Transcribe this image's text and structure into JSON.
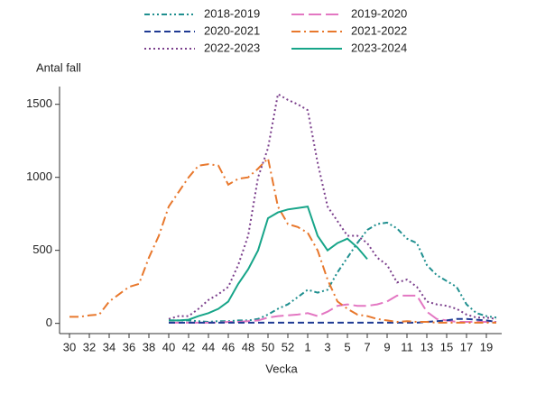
{
  "chart_data": {
    "type": "line",
    "ylabel": "Antal fall",
    "xlabel": "Vecka",
    "categories": [
      "30",
      null,
      "32",
      null,
      "34",
      null,
      "36",
      null,
      "38",
      null,
      "40",
      null,
      "42",
      null,
      "44",
      null,
      "46",
      null,
      "48",
      null,
      "50",
      null,
      "52",
      null,
      "1",
      null,
      "3",
      null,
      "5",
      null,
      "7",
      null,
      "9",
      null,
      "11",
      null,
      "13",
      null,
      "15",
      null,
      "17",
      null,
      "19",
      null
    ],
    "ylim": [
      -70,
      1650
    ],
    "yticks": [
      0,
      500,
      1000,
      1500
    ],
    "grid": false,
    "legend": "top",
    "series": [
      {
        "name": "2018-2019",
        "color": "#1f8f8f",
        "dash": "dashdotdot",
        "values": [
          null,
          null,
          null,
          null,
          null,
          null,
          null,
          null,
          null,
          null,
          20,
          20,
          20,
          15,
          10,
          15,
          15,
          20,
          20,
          30,
          60,
          100,
          130,
          180,
          230,
          210,
          230,
          350,
          450,
          550,
          640,
          680,
          690,
          650,
          580,
          550,
          400,
          330,
          290,
          250,
          130,
          70,
          50,
          40
        ]
      },
      {
        "name": "2019-2020",
        "color": "#e377c2",
        "dash": "longdash",
        "values": [
          null,
          null,
          null,
          null,
          null,
          null,
          null,
          null,
          null,
          null,
          5,
          5,
          5,
          5,
          5,
          5,
          10,
          10,
          15,
          20,
          40,
          50,
          55,
          60,
          70,
          50,
          80,
          120,
          130,
          120,
          120,
          130,
          150,
          190,
          190,
          190,
          80,
          30,
          20,
          10,
          10,
          10,
          10,
          10
        ]
      },
      {
        "name": "2020-2021",
        "color": "#1f3a93",
        "dash": "dash",
        "values": [
          null,
          null,
          null,
          null,
          null,
          null,
          null,
          null,
          null,
          null,
          5,
          5,
          5,
          5,
          5,
          5,
          5,
          5,
          5,
          5,
          5,
          5,
          5,
          5,
          5,
          5,
          5,
          5,
          5,
          5,
          5,
          5,
          5,
          5,
          5,
          5,
          10,
          15,
          20,
          30,
          30,
          25,
          20,
          10
        ]
      },
      {
        "name": "2021-2022",
        "color": "#e8782d",
        "dash": "dashdot",
        "values": [
          45,
          45,
          55,
          60,
          150,
          200,
          250,
          270,
          450,
          600,
          800,
          900,
          1000,
          1080,
          1090,
          1080,
          950,
          990,
          1000,
          1060,
          1130,
          800,
          680,
          660,
          620,
          500,
          300,
          150,
          100,
          60,
          50,
          30,
          20,
          10,
          15,
          10,
          10,
          5,
          5,
          5,
          5,
          5,
          5,
          5
        ]
      },
      {
        "name": "2022-2023",
        "color": "#7b3f8c",
        "dash": "dot",
        "values": [
          null,
          null,
          null,
          null,
          null,
          null,
          null,
          null,
          null,
          null,
          30,
          50,
          50,
          100,
          160,
          200,
          250,
          400,
          600,
          1000,
          1200,
          1570,
          1530,
          1500,
          1460,
          1100,
          800,
          700,
          600,
          600,
          550,
          450,
          400,
          280,
          300,
          250,
          150,
          130,
          120,
          100,
          60,
          40,
          40,
          30
        ]
      },
      {
        "name": "2023-2024",
        "color": "#17a589",
        "dash": "solid",
        "values": [
          null,
          null,
          null,
          null,
          null,
          null,
          null,
          null,
          null,
          null,
          20,
          20,
          25,
          50,
          70,
          100,
          150,
          270,
          370,
          500,
          720,
          760,
          780,
          790,
          800,
          600,
          500,
          550,
          580,
          520,
          440,
          null,
          null,
          null,
          null,
          null,
          null,
          null,
          null,
          null,
          null,
          null,
          null,
          null
        ]
      }
    ]
  }
}
